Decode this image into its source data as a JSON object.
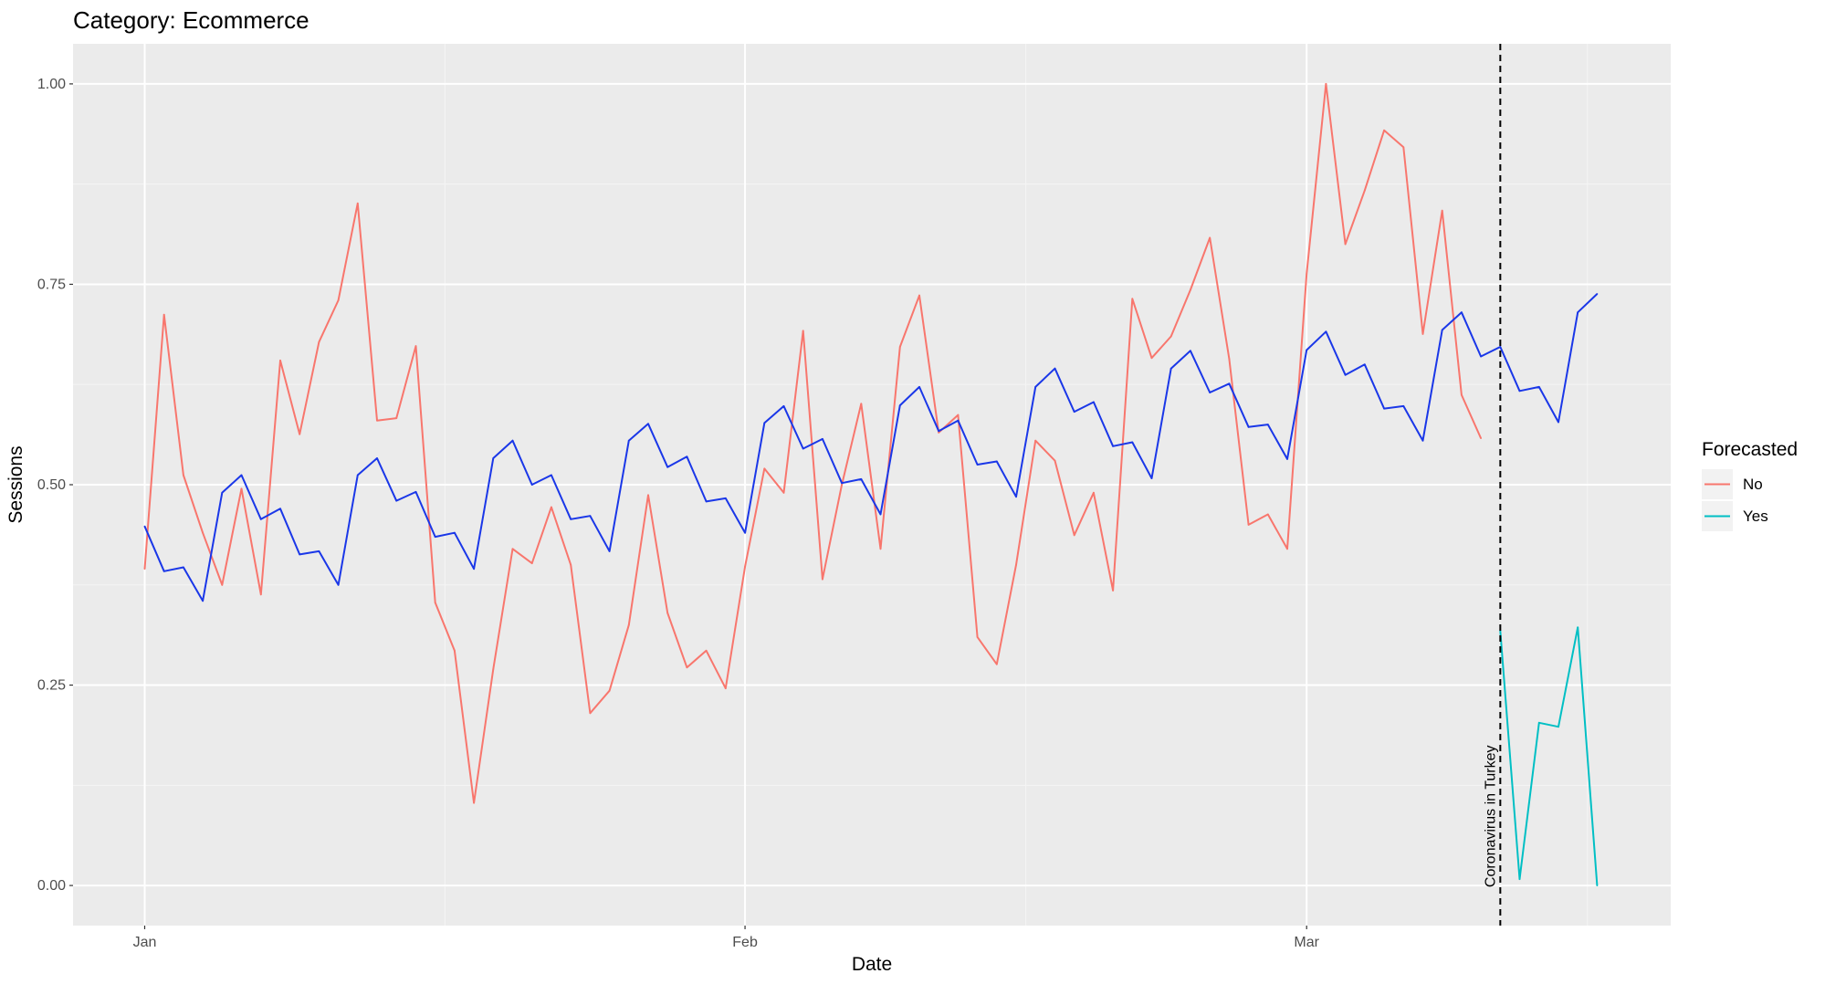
{
  "chart_data": {
    "type": "line",
    "title": "Category: Ecommerce",
    "xlabel": "Date",
    "ylabel": "Sessions",
    "x_ticks": [
      {
        "label": "Jan",
        "day": 0
      },
      {
        "label": "Feb",
        "day": 31
      },
      {
        "label": "Mar",
        "day": 60
      }
    ],
    "x_range_days": [
      -3.7,
      78.8
    ],
    "ylim": [
      -0.05,
      1.05
    ],
    "y_ticks": [
      {
        "value": 0.0,
        "label": "0.00"
      },
      {
        "value": 0.25,
        "label": "0.25"
      },
      {
        "value": 0.5,
        "label": "0.50"
      },
      {
        "value": 0.75,
        "label": "0.75"
      },
      {
        "value": 1.0,
        "label": "1.00"
      }
    ],
    "grid": true,
    "legend": {
      "title": "Forecasted",
      "position": "right",
      "entries": [
        {
          "label": "No",
          "color": "#F8766D"
        },
        {
          "label": "Yes",
          "color": "#00BFC4"
        }
      ]
    },
    "annotation": {
      "label": "Coronavirus in Turkey",
      "day": 70,
      "style": "dashed vertical line"
    },
    "series": [
      {
        "color": "#F8766D",
        "start_day": 0,
        "values": [
          0.395,
          0.712,
          0.512,
          0.44,
          0.375,
          0.495,
          0.363,
          0.655,
          0.563,
          0.678,
          0.73,
          0.851,
          0.58,
          0.583,
          0.673,
          0.353,
          0.293,
          0.103,
          0.27,
          0.42,
          0.402,
          0.472,
          0.4,
          0.215,
          0.243,
          0.325,
          0.487,
          0.34,
          0.272,
          0.293,
          0.246,
          0.398,
          0.52,
          0.49,
          0.692,
          0.382,
          0.5,
          0.601,
          0.42,
          0.672,
          0.736,
          0.565,
          0.587,
          0.31,
          0.276,
          0.4,
          0.555,
          0.53,
          0.437,
          0.49,
          0.368,
          0.732,
          0.658,
          0.685,
          0.743,
          0.808,
          0.657,
          0.45,
          0.463,
          0.42,
          0.763,
          1.0,
          0.8,
          0.867,
          0.942,
          0.921,
          0.688,
          0.842,
          0.612,
          0.558
        ]
      },
      {
        "color": "#00BFC4",
        "start_day": 70,
        "values": [
          0.318,
          0.008,
          0.203,
          0.198,
          0.322,
          0.0
        ]
      },
      {
        "color": "#1A37E8",
        "start_day": 0,
        "values": [
          0.448,
          0.392,
          0.397,
          0.355,
          0.49,
          0.512,
          0.457,
          0.47,
          0.413,
          0.417,
          0.375,
          0.512,
          0.533,
          0.48,
          0.491,
          0.435,
          0.44,
          0.395,
          0.533,
          0.555,
          0.5,
          0.512,
          0.457,
          0.461,
          0.417,
          0.555,
          0.576,
          0.522,
          0.535,
          0.479,
          0.483,
          0.44,
          0.577,
          0.598,
          0.545,
          0.557,
          0.502,
          0.507,
          0.463,
          0.599,
          0.622,
          0.567,
          0.58,
          0.525,
          0.529,
          0.485,
          0.622,
          0.645,
          0.591,
          0.603,
          0.548,
          0.553,
          0.508,
          0.645,
          0.667,
          0.615,
          0.626,
          0.572,
          0.575,
          0.532,
          0.668,
          0.691,
          0.637,
          0.65,
          0.595,
          0.598,
          0.555,
          0.693,
          0.715,
          0.66,
          0.672,
          0.617,
          0.622,
          0.578,
          0.715,
          0.738
        ]
      }
    ]
  }
}
